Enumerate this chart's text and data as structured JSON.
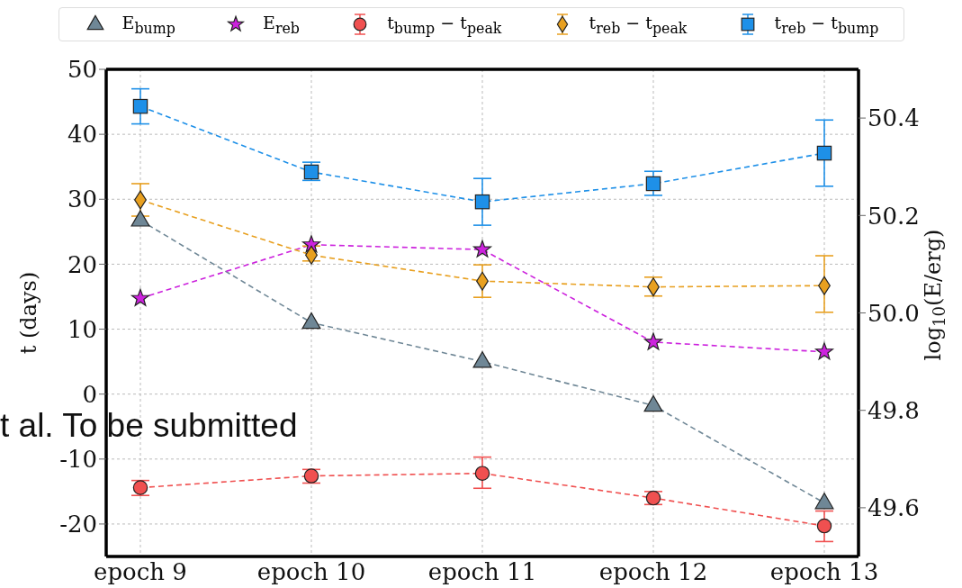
{
  "chart_data": {
    "type": "line",
    "categories": [
      "epoch 9",
      "epoch 10",
      "epoch 11",
      "epoch 12",
      "epoch 13"
    ],
    "ylabel": "t (days)",
    "y2label": "log$_{10}$(E/erg)",
    "ylim": [
      -25,
      50
    ],
    "yticks": [
      -20,
      -10,
      0,
      10,
      20,
      30,
      40,
      50
    ],
    "y2lim": [
      49.5,
      50.5
    ],
    "y2ticks": [
      49.6,
      49.8,
      {
        "value": 50,
        "label": "50.0"
      },
      50.2,
      50.4
    ],
    "grid": true,
    "legend": "top",
    "line_style": "dashed",
    "annotations": [
      "t al. To be submitted"
    ],
    "series": [
      {
        "name": "E$_{bump}$",
        "color": "#6f8796",
        "marker": "triangle",
        "axis": "y2",
        "values": [
          50.19,
          49.98,
          49.9,
          49.81,
          49.61
        ]
      },
      {
        "name": "E$_{reb}$",
        "color": "#cc22dd",
        "marker": "star",
        "axis": "y2",
        "values": [
          50.03,
          50.14,
          50.13,
          49.94,
          49.92
        ]
      },
      {
        "name": "t$_{bump}$ − t$_{peak}$",
        "color": "#f05050",
        "marker": "circle",
        "values": [
          -14.4,
          -12.6,
          -12.2,
          -16.0,
          -20.3
        ],
        "errors": [
          [
            -15.6,
            -13.3
          ],
          [
            -13.7,
            -11.6
          ],
          [
            -14.5,
            -9.7
          ],
          [
            -17.0,
            -15.0
          ],
          [
            -22.7,
            -18.0
          ]
        ]
      },
      {
        "name": "t$_{reb}$ − t$_{peak}$",
        "color": "#e8a020",
        "marker": "diamond",
        "values": [
          29.9,
          21.4,
          17.4,
          16.5,
          16.7
        ],
        "errors": [
          [
            27.4,
            32.4
          ],
          [
            20.5,
            22.8
          ],
          [
            14.9,
            19.9
          ],
          [
            15.1,
            18.0
          ],
          [
            12.6,
            21.3
          ]
        ]
      },
      {
        "name": "t$_{reb}$ − t$_{bump}$",
        "color": "#1e90e8",
        "marker": "square",
        "values": [
          44.3,
          34.2,
          29.6,
          32.4,
          37.1
        ],
        "errors": [
          [
            41.6,
            47.0
          ],
          [
            32.9,
            35.7
          ],
          [
            26.0,
            33.2
          ],
          [
            30.6,
            34.3
          ],
          [
            32.0,
            42.2
          ]
        ]
      }
    ]
  }
}
